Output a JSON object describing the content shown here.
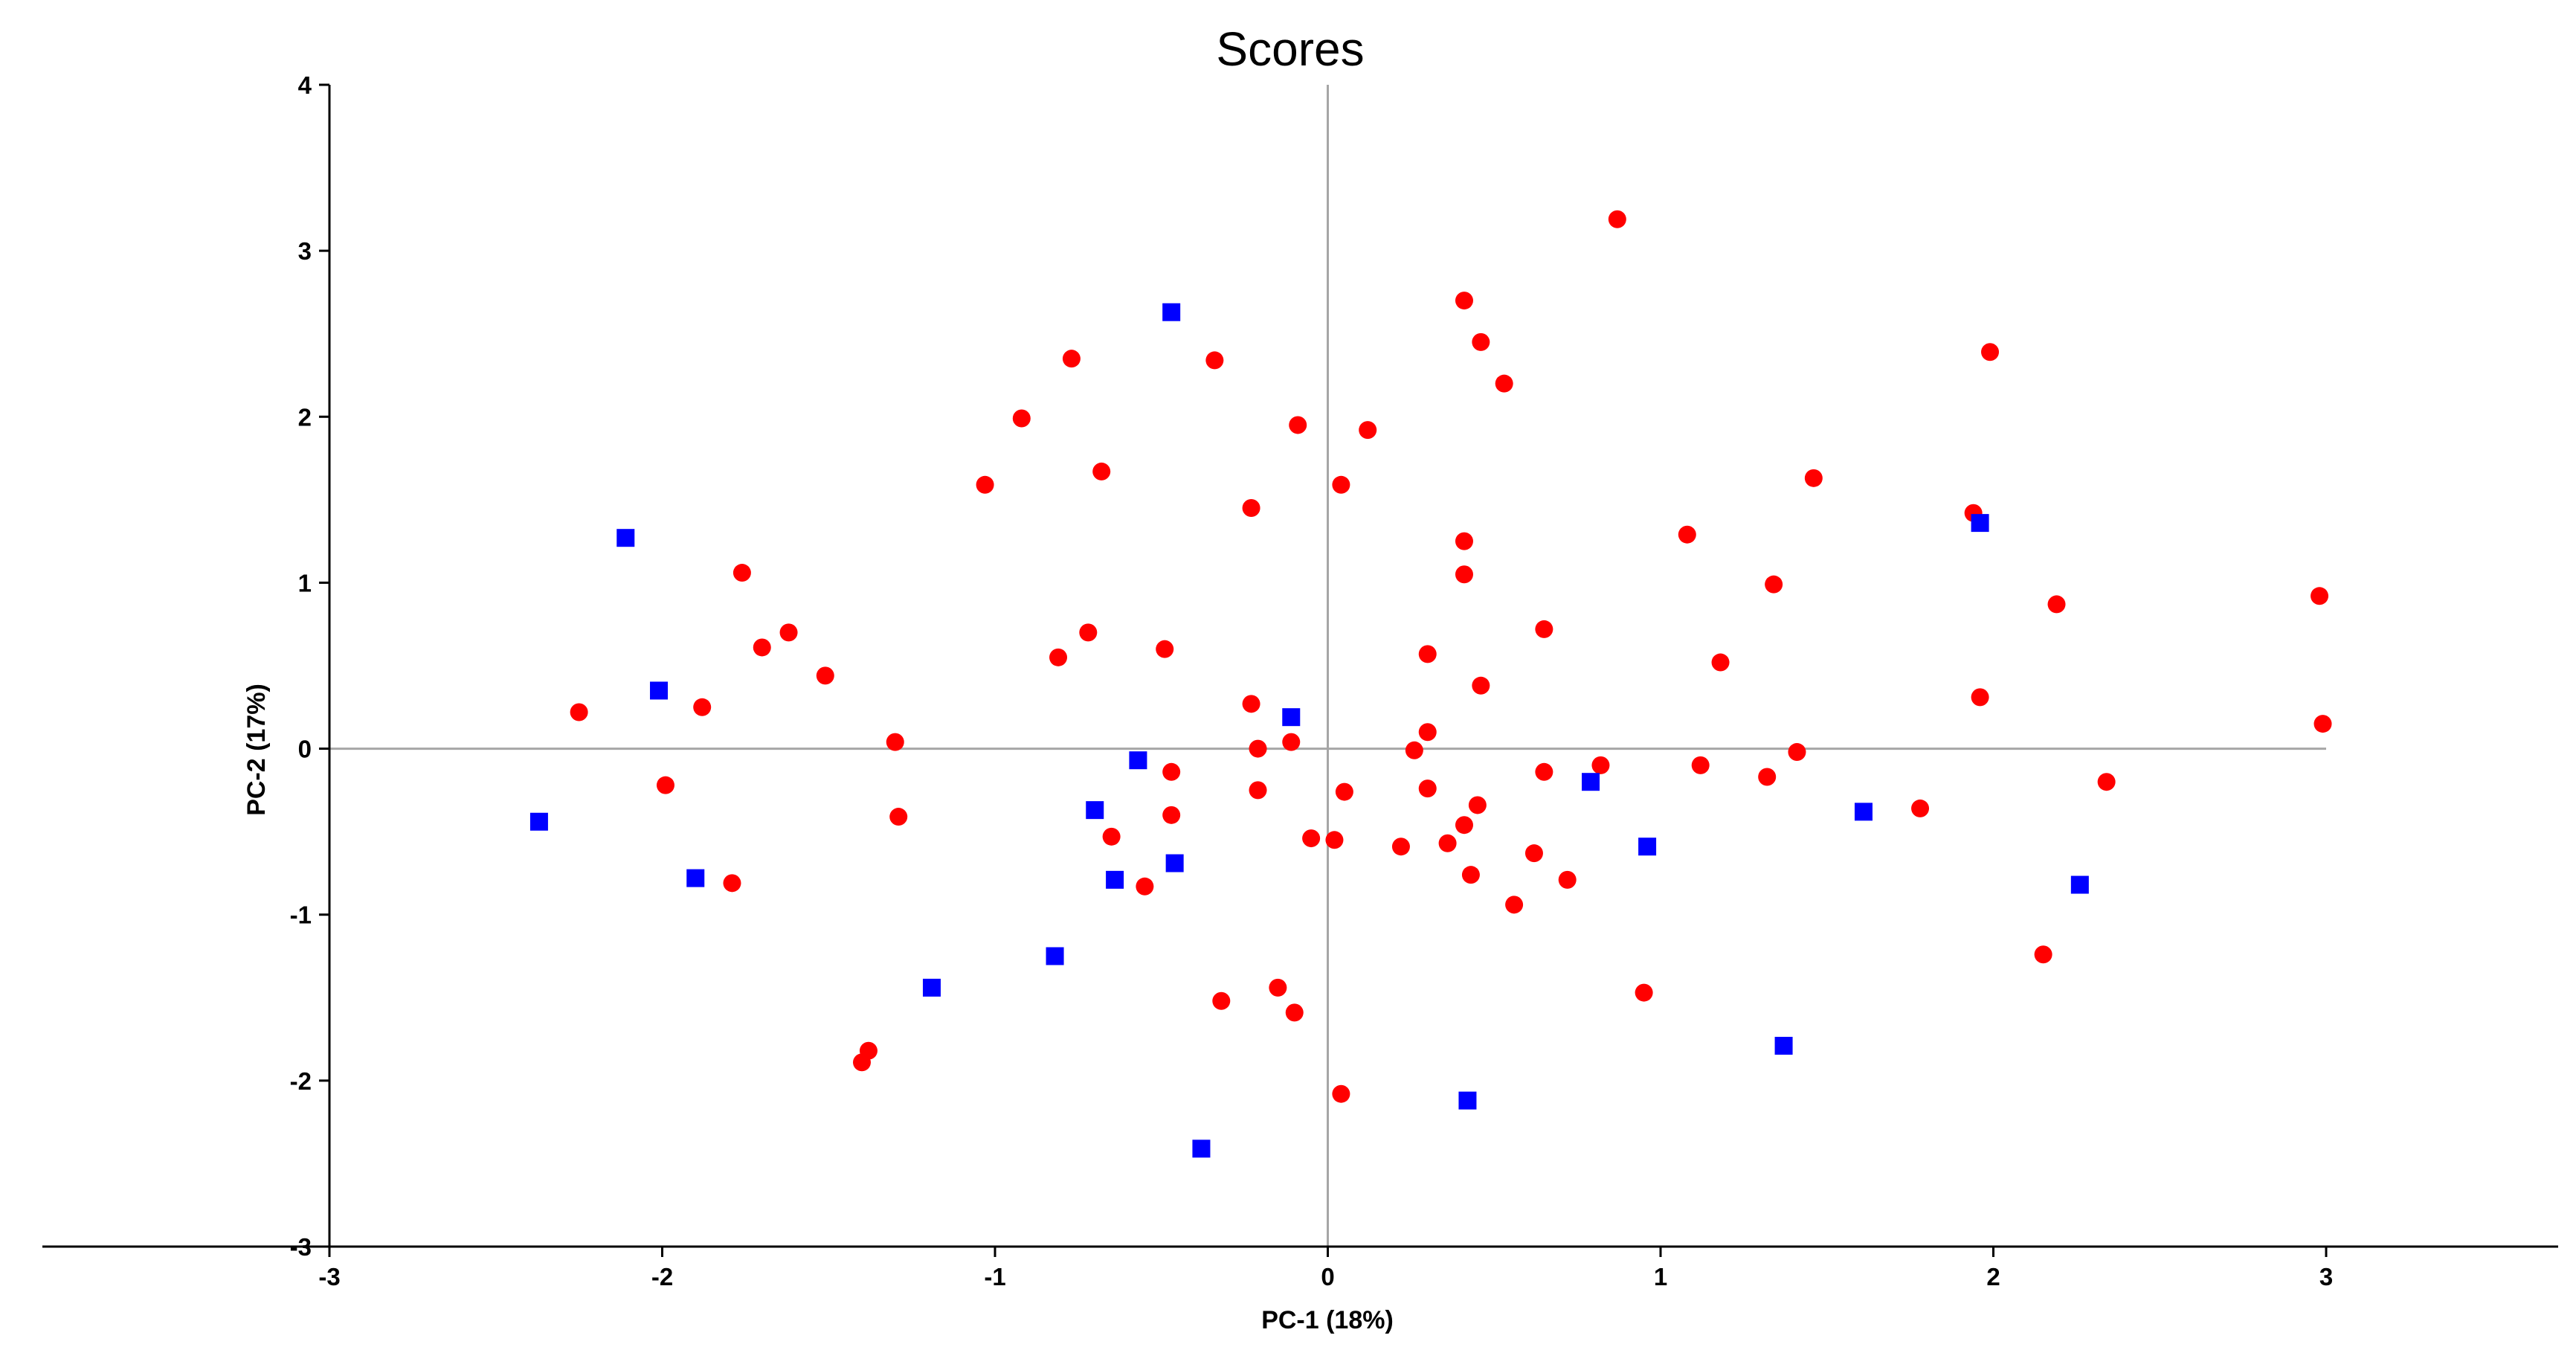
{
  "chart_data": {
    "type": "scatter",
    "title": "Scores",
    "xlabel": "PC-1 (18%)",
    "ylabel": "PC-2 (17%)",
    "xlim": [
      -3,
      3
    ],
    "ylim": [
      -3,
      4
    ],
    "x_ticks": [
      -3,
      -2,
      -1,
      0,
      1,
      2,
      3
    ],
    "y_ticks": [
      -3,
      -2,
      -1,
      0,
      1,
      2,
      3,
      4
    ],
    "grid": false,
    "legend": "none",
    "series": [
      {
        "marker": "circle",
        "color": "#ff0000",
        "points": [
          [
            0.87,
            3.19
          ],
          [
            0.41,
            2.7
          ],
          [
            0.46,
            2.45
          ],
          [
            0.53,
            2.2
          ],
          [
            1.99,
            2.39
          ],
          [
            -0.77,
            2.35
          ],
          [
            -0.34,
            2.34
          ],
          [
            -0.92,
            1.99
          ],
          [
            -0.09,
            1.95
          ],
          [
            0.12,
            1.92
          ],
          [
            -1.03,
            1.59
          ],
          [
            -0.68,
            1.67
          ],
          [
            0.04,
            1.59
          ],
          [
            1.46,
            1.63
          ],
          [
            -0.23,
            1.45
          ],
          [
            1.08,
            1.29
          ],
          [
            0.41,
            1.25
          ],
          [
            1.94,
            1.42
          ],
          [
            -1.76,
            1.06
          ],
          [
            0.41,
            1.05
          ],
          [
            1.34,
            0.99
          ],
          [
            2.19,
            0.87
          ],
          [
            2.98,
            0.92
          ],
          [
            0.65,
            0.72
          ],
          [
            -1.62,
            0.7
          ],
          [
            -0.72,
            0.7
          ],
          [
            -1.7,
            0.61
          ],
          [
            -0.49,
            0.6
          ],
          [
            0.3,
            0.57
          ],
          [
            -0.81,
            0.55
          ],
          [
            1.18,
            0.52
          ],
          [
            -1.51,
            0.44
          ],
          [
            0.46,
            0.38
          ],
          [
            1.96,
            0.31
          ],
          [
            -0.23,
            0.27
          ],
          [
            -1.88,
            0.25
          ],
          [
            -2.25,
            0.22
          ],
          [
            2.99,
            0.15
          ],
          [
            0.3,
            0.1
          ],
          [
            -1.3,
            0.04
          ],
          [
            -0.11,
            0.04
          ],
          [
            -0.21,
            0.0
          ],
          [
            0.26,
            -0.01
          ],
          [
            1.41,
            -0.02
          ],
          [
            1.12,
            -0.1
          ],
          [
            0.82,
            -0.1
          ],
          [
            -0.47,
            -0.14
          ],
          [
            0.65,
            -0.14
          ],
          [
            1.32,
            -0.17
          ],
          [
            2.34,
            -0.2
          ],
          [
            -1.99,
            -0.22
          ],
          [
            -0.21,
            -0.25
          ],
          [
            0.3,
            -0.24
          ],
          [
            0.05,
            -0.26
          ],
          [
            0.45,
            -0.34
          ],
          [
            1.78,
            -0.36
          ],
          [
            -0.47,
            -0.4
          ],
          [
            -1.29,
            -0.41
          ],
          [
            0.41,
            -0.46
          ],
          [
            -0.65,
            -0.53
          ],
          [
            -0.05,
            -0.54
          ],
          [
            0.02,
            -0.55
          ],
          [
            0.22,
            -0.59
          ],
          [
            0.36,
            -0.57
          ],
          [
            0.62,
            -0.63
          ],
          [
            0.43,
            -0.76
          ],
          [
            0.72,
            -0.79
          ],
          [
            -1.79,
            -0.81
          ],
          [
            -0.55,
            -0.83
          ],
          [
            0.56,
            -0.94
          ],
          [
            2.15,
            -1.24
          ],
          [
            -0.15,
            -1.44
          ],
          [
            0.95,
            -1.47
          ],
          [
            -0.32,
            -1.52
          ],
          [
            -0.1,
            -1.59
          ],
          [
            -1.38,
            -1.82
          ],
          [
            -1.4,
            -1.89
          ],
          [
            0.04,
            -2.08
          ]
        ]
      },
      {
        "marker": "square",
        "color": "#0000ff",
        "points": [
          [
            -0.47,
            2.63
          ],
          [
            -2.11,
            1.27
          ],
          [
            1.96,
            1.36
          ],
          [
            -2.01,
            0.35
          ],
          [
            -0.11,
            0.19
          ],
          [
            -0.57,
            -0.07
          ],
          [
            0.79,
            -0.2
          ],
          [
            -0.7,
            -0.37
          ],
          [
            1.61,
            -0.38
          ],
          [
            -2.37,
            -0.44
          ],
          [
            0.96,
            -0.59
          ],
          [
            -0.46,
            -0.69
          ],
          [
            -1.9,
            -0.78
          ],
          [
            -0.64,
            -0.79
          ],
          [
            2.26,
            -0.82
          ],
          [
            -0.82,
            -1.25
          ],
          [
            -1.19,
            -1.44
          ],
          [
            1.37,
            -1.79
          ],
          [
            0.42,
            -2.12
          ],
          [
            -0.38,
            -2.41
          ]
        ]
      }
    ]
  }
}
